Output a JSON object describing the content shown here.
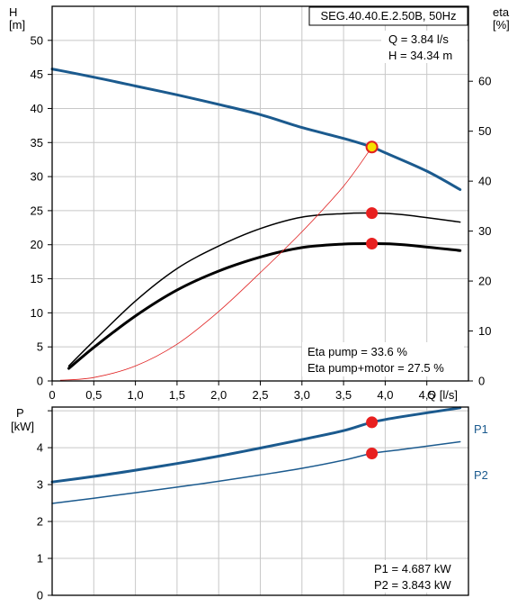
{
  "chart_data": [
    {
      "type": "line",
      "title": "SEG.40.40.E.2.50B, 50Hz",
      "xlabel": "Q [l/s]",
      "ylabel_left_name": "H",
      "ylabel_left_unit": "[m]",
      "ylabel_right_name": "eta",
      "ylabel_right_unit": "[%]",
      "xlim": [
        0,
        5.0
      ],
      "ylim_left": [
        0,
        55
      ],
      "ylim_right": [
        0,
        75
      ],
      "x_ticks": [
        "0",
        "0,5",
        "1,0",
        "1,5",
        "2,0",
        "2,5",
        "3,0",
        "3,5",
        "4,0",
        "4,5"
      ],
      "y_left_ticks": [
        "0",
        "5",
        "10",
        "15",
        "20",
        "25",
        "30",
        "35",
        "40",
        "45",
        "50"
      ],
      "y_right_ticks": [
        "0",
        "10",
        "20",
        "30",
        "40",
        "50",
        "60"
      ],
      "grid": true,
      "info_lines": [
        "Q = 3.84 l/s",
        "H = 34.34 m"
      ],
      "eta_lines": [
        "Eta pump = 33.6 %",
        "Eta pump+motor = 27.5 %"
      ],
      "series": [
        {
          "axis": "left",
          "color": "#1b5a8e",
          "width": 3,
          "x": [
            0,
            0.5,
            1.0,
            1.5,
            2.0,
            2.5,
            3.0,
            3.5,
            3.84,
            4.0,
            4.5,
            4.9
          ],
          "values": [
            45.8,
            44.6,
            43.3,
            42.0,
            40.6,
            39.1,
            37.2,
            35.6,
            34.34,
            33.5,
            30.8,
            28.1
          ]
        },
        {
          "axis": "right",
          "color": "#000000",
          "width": 1.5,
          "x": [
            0.2,
            0.5,
            1.0,
            1.5,
            2.0,
            2.5,
            3.0,
            3.5,
            3.84,
            4.2,
            4.9
          ],
          "values": [
            3.0,
            8.0,
            16.0,
            22.5,
            27.0,
            30.5,
            32.8,
            33.5,
            33.6,
            33.3,
            31.8
          ]
        },
        {
          "axis": "right",
          "color": "#000000",
          "width": 3,
          "x": [
            0.2,
            0.5,
            1.0,
            1.5,
            2.0,
            2.5,
            3.0,
            3.5,
            3.84,
            4.2,
            4.9
          ],
          "values": [
            2.5,
            6.7,
            13.0,
            18.2,
            22.0,
            24.8,
            26.7,
            27.4,
            27.5,
            27.3,
            26.1
          ]
        },
        {
          "axis": "left",
          "color": "#e02020",
          "width": 0.8,
          "x": [
            0.1,
            0.5,
            1.0,
            1.5,
            2.0,
            2.5,
            3.0,
            3.5,
            3.84
          ],
          "values": [
            0.1,
            0.5,
            2.2,
            5.4,
            10.2,
            15.9,
            21.9,
            28.6,
            34.34
          ]
        }
      ],
      "points": [
        {
          "axis": "left",
          "x": 3.84,
          "y": 34.34,
          "fill": "#f6e100",
          "stroke": "#e02020"
        },
        {
          "axis": "right",
          "x": 3.84,
          "y": 33.6,
          "fill": "#e82020",
          "stroke": "#e82020"
        },
        {
          "axis": "right",
          "x": 3.84,
          "y": 27.5,
          "fill": "#e82020",
          "stroke": "#e82020"
        }
      ]
    },
    {
      "type": "line",
      "xlabel": "",
      "ylabel_name": "P",
      "ylabel_unit": "[kW]",
      "xlim": [
        0,
        5.0
      ],
      "ylim": [
        0,
        5.1
      ],
      "y_ticks": [
        "0",
        "1",
        "2",
        "3",
        "4"
      ],
      "grid": true,
      "info_lines": [
        "P1 = 4.687 kW",
        "P2 = 3.843 kW"
      ],
      "series": [
        {
          "name": "P1",
          "color": "#1b5a8e",
          "width": 3,
          "x": [
            0,
            0.5,
            1.0,
            1.5,
            2.0,
            2.5,
            3.0,
            3.5,
            3.84,
            4.2,
            4.9
          ],
          "values": [
            3.07,
            3.22,
            3.39,
            3.57,
            3.77,
            3.99,
            4.22,
            4.46,
            4.687,
            4.84,
            5.08
          ]
        },
        {
          "name": "P2",
          "color": "#1b5a8e",
          "width": 1.5,
          "x": [
            0,
            0.5,
            1.0,
            1.5,
            2.0,
            2.5,
            3.0,
            3.5,
            3.84,
            4.2,
            4.9
          ],
          "values": [
            2.49,
            2.63,
            2.78,
            2.93,
            3.09,
            3.26,
            3.44,
            3.66,
            3.843,
            3.95,
            4.16
          ]
        }
      ],
      "points": [
        {
          "x": 3.84,
          "y": 4.687,
          "fill": "#e82020",
          "stroke": "#e82020"
        },
        {
          "x": 3.84,
          "y": 3.843,
          "fill": "#e82020",
          "stroke": "#e82020"
        }
      ]
    }
  ]
}
